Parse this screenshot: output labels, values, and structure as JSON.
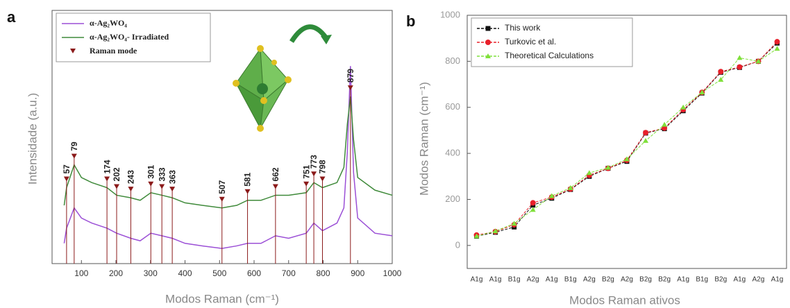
{
  "chart_data": [
    {
      "type": "line",
      "panel": "a",
      "y_label": "Intensidade (a.u.)",
      "x_label": "Modos Raman (cm⁻¹)",
      "xlim": [
        15,
        1000
      ],
      "xticks": [
        100,
        200,
        300,
        400,
        500,
        600,
        700,
        800,
        900,
        1000
      ],
      "ylim": [
        0,
        100
      ],
      "x": [
        50,
        57,
        79,
        100,
        130,
        174,
        202,
        243,
        270,
        301,
        333,
        363,
        400,
        450,
        507,
        550,
        581,
        620,
        662,
        700,
        751,
        773,
        798,
        840,
        860,
        870,
        879,
        888,
        900,
        950,
        1000
      ],
      "series": [
        {
          "name": "α-Ag₂WO₄",
          "color": "#9b4fd6",
          "values": [
            8,
            14,
            22,
            18,
            16,
            14,
            12,
            10,
            9,
            12,
            11,
            10,
            8,
            7,
            6,
            7,
            8,
            8,
            11,
            10,
            12,
            16,
            13,
            16,
            22,
            44,
            78,
            36,
            18,
            12,
            11
          ]
        },
        {
          "name": "α-Ag₂WO₄- Irradiated",
          "color": "#3f8a3a",
          "values": [
            23,
            30,
            39,
            34,
            32,
            30,
            27,
            26,
            25,
            28,
            27,
            26,
            24,
            23,
            22,
            23,
            25,
            25,
            27,
            27,
            28,
            32,
            30,
            32,
            38,
            55,
            66,
            49,
            34,
            29,
            27
          ]
        }
      ],
      "modes": {
        "name": "Raman mode",
        "color": "#8b1a1a",
        "values": [
          57,
          79,
          174,
          202,
          243,
          301,
          333,
          363,
          507,
          581,
          662,
          751,
          773,
          798,
          879
        ]
      },
      "legend": "upper left"
    },
    {
      "type": "line",
      "panel": "b",
      "y_label": "Modos Raman (cm⁻¹)",
      "x_label": "Modos Raman ativos",
      "categories": [
        "A1g",
        "A1g",
        "B1g",
        "A2g",
        "A1g",
        "B1g",
        "A2g",
        "B2g",
        "A2g",
        "B2g",
        "B2g",
        "A1g",
        "B1g",
        "B2g",
        "A1g",
        "A2g",
        "A1g"
      ],
      "ylim": [
        -100,
        1000
      ],
      "yticks": [
        0,
        200,
        400,
        600,
        800,
        1000
      ],
      "series": [
        {
          "name": "This work",
          "color": "#111111",
          "marker": "square",
          "values": [
            40,
            57,
            80,
            175,
            205,
            243,
            300,
            335,
            365,
            488,
            507,
            585,
            662,
            752,
            773,
            800,
            879
          ]
        },
        {
          "name": "Turkovic et al.",
          "color": "#e8202a",
          "marker": "circle",
          "values": [
            45,
            60,
            90,
            185,
            210,
            245,
            305,
            335,
            370,
            490,
            510,
            590,
            665,
            755,
            775,
            800,
            885
          ]
        },
        {
          "name": "Theoretical Calculations",
          "color": "#7fe03a",
          "marker": "triangle",
          "values": [
            40,
            62,
            95,
            155,
            215,
            250,
            315,
            338,
            375,
            455,
            525,
            600,
            665,
            720,
            815,
            800,
            855
          ]
        }
      ],
      "legend": "upper left"
    }
  ]
}
